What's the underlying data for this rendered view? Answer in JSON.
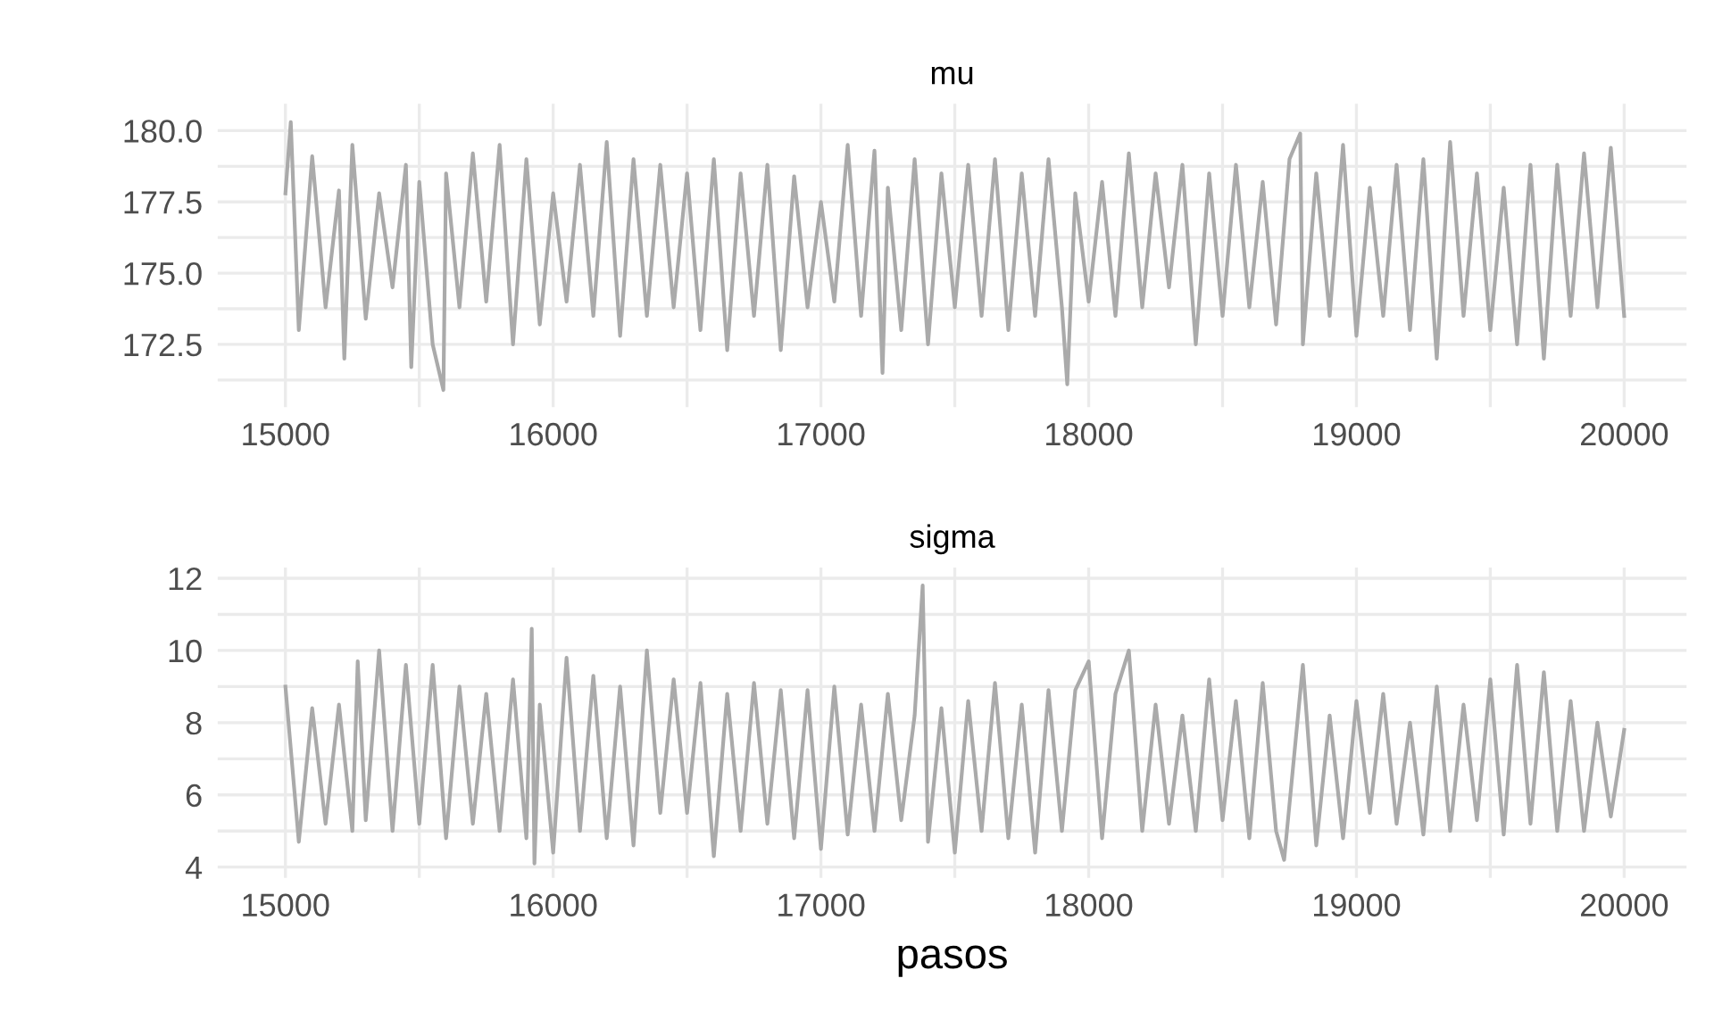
{
  "chart_data": [
    {
      "type": "line",
      "title": "mu",
      "xlim": [
        14747,
        20233
      ],
      "ylim": [
        170.3,
        180.94
      ],
      "grid": true,
      "line_style": "solid",
      "xticks": [
        15000,
        {
          "value": 15500,
          "label": null
        },
        16000,
        {
          "value": 16500,
          "label": null
        },
        17000,
        {
          "value": 17500,
          "label": null
        },
        18000,
        {
          "value": 18500,
          "label": null
        },
        19000,
        {
          "value": 19500,
          "label": null
        },
        20000
      ],
      "yticks": [
        {
          "value": 171.25,
          "label": null
        },
        {
          "value": 172.5,
          "label": "172.5"
        },
        {
          "value": 173.75,
          "label": null
        },
        {
          "value": 175,
          "label": "175.0"
        },
        {
          "value": 176.25,
          "label": null
        },
        {
          "value": 177.5,
          "label": "177.5"
        },
        {
          "value": 178.75,
          "label": null
        },
        {
          "value": 180,
          "label": "180.0"
        }
      ],
      "series": [
        {
          "color": "#aaaaaa",
          "x": [
            15000,
            15020,
            15050,
            15100,
            15150,
            15200,
            15220,
            15250,
            15300,
            15350,
            15400,
            15450,
            15470,
            15500,
            15550,
            15590,
            15600,
            15650,
            15700,
            15750,
            15800,
            15850,
            15900,
            15950,
            16000,
            16050,
            16100,
            16150,
            16200,
            16250,
            16300,
            16350,
            16400,
            16450,
            16500,
            16550,
            16600,
            16650,
            16700,
            16750,
            16800,
            16850,
            16900,
            16950,
            17000,
            17050,
            17100,
            17150,
            17200,
            17230,
            17250,
            17300,
            17350,
            17400,
            17450,
            17500,
            17550,
            17600,
            17650,
            17700,
            17750,
            17800,
            17850,
            17900,
            17920,
            17950,
            18000,
            18050,
            18100,
            18150,
            18200,
            18250,
            18300,
            18350,
            18400,
            18450,
            18500,
            18550,
            18600,
            18650,
            18700,
            18750,
            18790,
            18800,
            18850,
            18900,
            18950,
            19000,
            19050,
            19100,
            19150,
            19200,
            19250,
            19300,
            19350,
            19400,
            19450,
            19500,
            19550,
            19600,
            19650,
            19700,
            19750,
            19800,
            19850,
            19900,
            19950,
            20000
          ],
          "values": [
            177.8,
            180.3,
            173.0,
            179.1,
            173.8,
            177.9,
            172.0,
            179.5,
            173.4,
            177.8,
            174.5,
            178.8,
            171.7,
            178.2,
            172.5,
            170.9,
            178.5,
            173.8,
            179.2,
            174.0,
            179.5,
            172.5,
            179.0,
            173.2,
            177.8,
            174.0,
            178.8,
            173.5,
            179.6,
            172.8,
            179.0,
            173.5,
            178.8,
            173.8,
            178.5,
            173.0,
            179.0,
            172.3,
            178.5,
            173.5,
            178.8,
            172.3,
            178.4,
            173.8,
            177.5,
            174.0,
            179.5,
            173.5,
            179.3,
            171.5,
            178.0,
            173.0,
            179.0,
            172.5,
            178.5,
            173.8,
            178.8,
            173.5,
            179.0,
            173.0,
            178.5,
            173.5,
            179.0,
            173.8,
            171.1,
            177.8,
            174.0,
            178.2,
            173.5,
            179.2,
            173.8,
            178.5,
            174.5,
            178.8,
            172.5,
            178.5,
            173.5,
            178.8,
            173.8,
            178.2,
            173.2,
            179.0,
            179.9,
            172.5,
            178.5,
            173.5,
            179.5,
            172.8,
            178.0,
            173.5,
            178.8,
            173.0,
            179.0,
            172.0,
            179.6,
            173.5,
            178.5,
            173.0,
            178.0,
            172.5,
            178.8,
            172.0,
            178.8,
            173.5,
            179.2,
            173.8,
            179.4,
            173.5
          ]
        }
      ]
    },
    {
      "type": "line",
      "title": "sigma",
      "xlabel": "pasos",
      "xlim": [
        14747,
        20233
      ],
      "ylim": [
        3.7,
        12.3
      ],
      "grid": true,
      "line_style": "solid",
      "xticks": [
        15000,
        {
          "value": 15500,
          "label": null
        },
        16000,
        {
          "value": 16500,
          "label": null
        },
        17000,
        {
          "value": 17500,
          "label": null
        },
        18000,
        {
          "value": 18500,
          "label": null
        },
        19000,
        {
          "value": 19500,
          "label": null
        },
        20000
      ],
      "yticks": [
        4,
        {
          "value": 5,
          "label": null
        },
        6,
        {
          "value": 7,
          "label": null
        },
        8,
        {
          "value": 9,
          "label": null
        },
        10,
        {
          "value": 11,
          "label": null
        },
        12
      ],
      "series": [
        {
          "color": "#aaaaaa",
          "x": [
            15000,
            15050,
            15100,
            15150,
            15200,
            15250,
            15270,
            15300,
            15350,
            15400,
            15450,
            15500,
            15550,
            15600,
            15650,
            15700,
            15750,
            15800,
            15850,
            15900,
            15920,
            15930,
            15950,
            16000,
            16050,
            16100,
            16150,
            16200,
            16250,
            16300,
            16350,
            16400,
            16450,
            16500,
            16550,
            16600,
            16650,
            16700,
            16750,
            16800,
            16850,
            16900,
            16950,
            17000,
            17050,
            17100,
            17150,
            17200,
            17250,
            17300,
            17350,
            17380,
            17400,
            17450,
            17500,
            17550,
            17600,
            17650,
            17700,
            17750,
            17800,
            17850,
            17900,
            17950,
            18000,
            18050,
            18100,
            18150,
            18200,
            18250,
            18300,
            18350,
            18400,
            18450,
            18500,
            18550,
            18600,
            18650,
            18700,
            18730,
            18800,
            18850,
            18900,
            18950,
            19000,
            19050,
            19100,
            19150,
            19200,
            19250,
            19300,
            19350,
            19400,
            19450,
            19500,
            19550,
            19600,
            19650,
            19700,
            19750,
            19800,
            19850,
            19900,
            19950,
            20000
          ],
          "values": [
            9.0,
            4.7,
            8.4,
            5.2,
            8.5,
            5.0,
            9.7,
            5.3,
            10.0,
            5.0,
            9.6,
            5.2,
            9.6,
            4.8,
            9.0,
            5.2,
            8.8,
            5.0,
            9.2,
            4.8,
            10.6,
            4.1,
            8.5,
            4.4,
            9.8,
            5.0,
            9.3,
            4.8,
            9.0,
            4.6,
            10.0,
            5.5,
            9.2,
            5.5,
            9.1,
            4.3,
            8.8,
            5.0,
            9.1,
            5.2,
            8.9,
            4.8,
            8.9,
            4.5,
            9.0,
            4.9,
            8.5,
            5.0,
            8.8,
            5.3,
            8.2,
            11.8,
            4.7,
            8.4,
            4.4,
            8.6,
            5.0,
            9.1,
            4.8,
            8.5,
            4.4,
            8.9,
            5.0,
            8.9,
            9.7,
            4.8,
            8.8,
            10.0,
            5.0,
            8.5,
            5.2,
            8.2,
            5.0,
            9.2,
            5.3,
            8.6,
            4.8,
            9.1,
            5.0,
            4.2,
            9.6,
            4.6,
            8.2,
            4.8,
            8.6,
            5.5,
            8.8,
            5.2,
            8.0,
            4.9,
            9.0,
            5.0,
            8.5,
            5.3,
            9.2,
            4.9,
            9.6,
            5.2,
            9.4,
            5.0,
            8.6,
            5.0,
            8.0,
            5.4,
            7.8
          ]
        }
      ]
    }
  ]
}
